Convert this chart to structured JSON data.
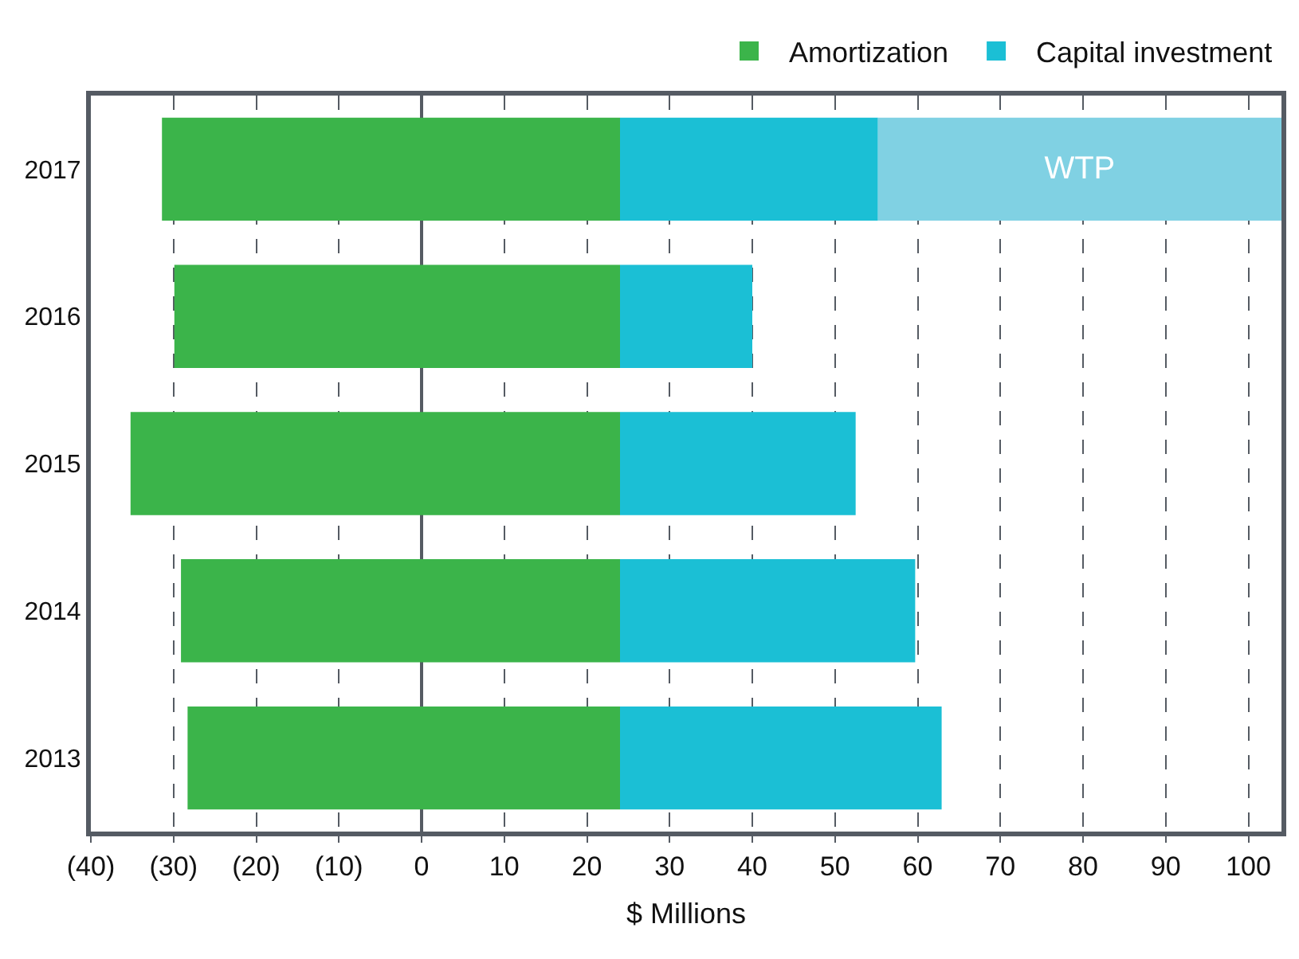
{
  "chart_data": {
    "type": "bar",
    "orientation": "horizontal",
    "xlabel": "$ Millions",
    "categories": [
      "2017",
      "2016",
      "2015",
      "2014",
      "2013"
    ],
    "series": [
      {
        "name": "Amortization",
        "color": "#3bb44a",
        "base": [
          -31.4,
          -29.9,
          -35.2,
          -29.1,
          -28.3
        ],
        "values": [
          55.4,
          53.9,
          59.2,
          53.1,
          52.3
        ]
      },
      {
        "name": "Capital investment",
        "color": "#1bbfd5",
        "base": [
          24,
          24,
          24,
          24,
          24
        ],
        "values": [
          31.2,
          16,
          28.5,
          35.7,
          38.9
        ]
      },
      {
        "name": "WTP",
        "color": "#80d1e3",
        "base": [
          55.2,
          null,
          null,
          null,
          null
        ],
        "values": [
          48.8,
          null,
          null,
          null,
          null
        ]
      }
    ],
    "xlim": [
      -40,
      104
    ],
    "xticks": [
      {
        "value": -40,
        "label": "(40)"
      },
      {
        "value": -30,
        "label": "(30)"
      },
      {
        "value": -20,
        "label": "(20)"
      },
      {
        "value": -10,
        "label": "(10)"
      },
      0,
      10,
      20,
      30,
      40,
      50,
      60,
      70,
      80,
      90,
      100
    ],
    "grid": "x",
    "legend": "top right"
  }
}
